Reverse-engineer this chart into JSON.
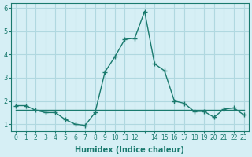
{
  "title": "",
  "xlabel": "Humidex (Indice chaleur)",
  "ylabel": "",
  "background_color": "#d6eff5",
  "grid_color": "#b0d8e0",
  "line_color": "#1a7a6e",
  "xlim": [
    -0.5,
    23.5
  ],
  "ylim": [
    0.7,
    6.2
  ],
  "yticks": [
    1,
    2,
    3,
    4,
    5,
    6
  ],
  "xtick_positions": [
    0,
    1,
    2,
    3,
    4,
    5,
    6,
    7,
    8,
    9,
    10,
    11,
    12,
    13,
    14,
    15,
    16,
    17,
    18,
    19,
    20,
    21,
    22,
    23
  ],
  "xtick_labels": [
    "0",
    "1",
    "2",
    "3",
    "4",
    "5",
    "6",
    "7",
    "8",
    "9",
    "10",
    "11",
    "12",
    "",
    "14",
    "15",
    "16",
    "17",
    "18",
    "19",
    "20",
    "21",
    "22",
    "23"
  ],
  "series1_x": [
    0,
    1,
    2,
    3,
    4,
    5,
    6,
    7,
    8,
    9,
    10,
    11,
    12,
    13,
    14,
    15,
    16,
    17,
    18,
    19,
    20,
    21,
    22,
    23
  ],
  "series1_y": [
    1.8,
    1.8,
    1.6,
    1.5,
    1.5,
    1.2,
    1.0,
    0.95,
    1.5,
    3.25,
    3.9,
    4.65,
    4.7,
    5.85,
    3.6,
    3.3,
    2.0,
    1.9,
    1.55,
    1.55,
    1.3,
    1.65,
    1.7,
    1.4
  ],
  "series2_x": [
    0,
    23
  ],
  "series2_y": [
    1.6,
    1.6
  ],
  "marker": "+",
  "markersize": 5,
  "linewidth": 1.0
}
